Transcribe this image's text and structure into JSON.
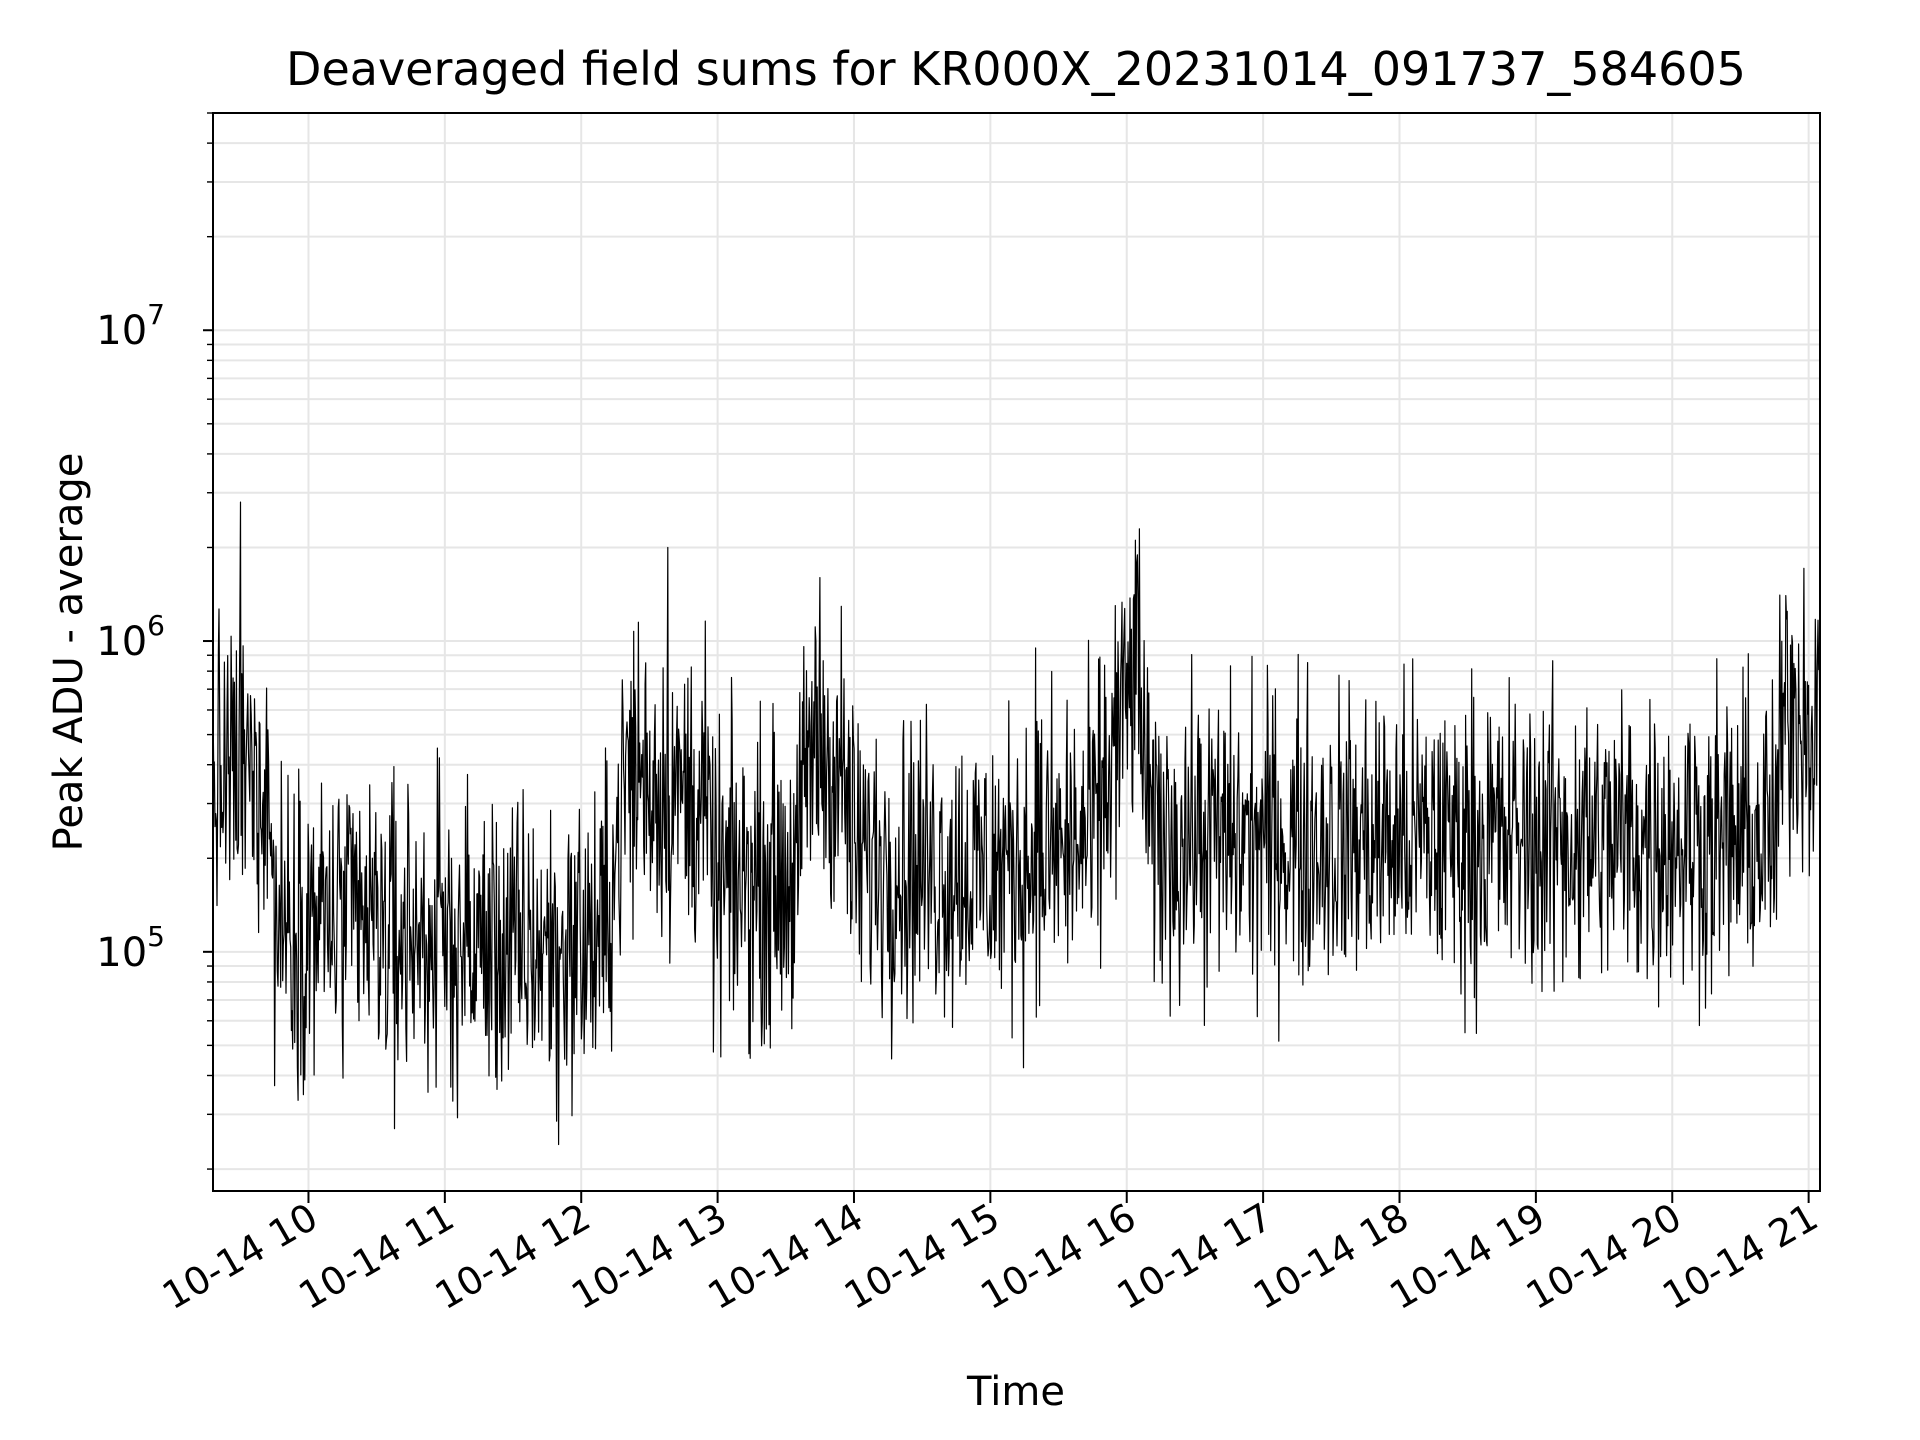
{
  "chart_data": {
    "type": "line",
    "title": "Deaveraged field sums for KR000X_20231014_091737_584605",
    "xlabel": "Time",
    "ylabel": "Peak ADU - average",
    "yscale": "log",
    "xlim": [
      "2023-10-14 09:18",
      "2023-10-14 21:05"
    ],
    "ylim": [
      17000,
      50000000
    ],
    "x_ticks": [
      "10-14 10",
      "10-14 11",
      "10-14 12",
      "10-14 13",
      "10-14 14",
      "10-14 15",
      "10-14 16",
      "10-14 17",
      "10-14 18",
      "10-14 19",
      "10-14 20",
      "10-14 21"
    ],
    "y_ticks": [
      {
        "base": "10",
        "exp": "5"
      },
      {
        "base": "10",
        "exp": "6"
      },
      {
        "base": "10",
        "exp": "7"
      }
    ],
    "grid": "on (major and minor)",
    "line_color": "#000000",
    "x_start": "2023-10-14 09:18",
    "x_end": "2023-10-14 21:05",
    "level_profile": [
      {
        "x": "2023-10-14 09:18",
        "y": 350000
      },
      {
        "x": "2023-10-14 09:42",
        "y": 380000
      },
      {
        "x": "2023-10-14 09:45",
        "y": 130000
      },
      {
        "x": "2023-10-14 10:30",
        "y": 120000
      },
      {
        "x": "2023-10-14 11:30",
        "y": 100000
      },
      {
        "x": "2023-10-14 12:10",
        "y": 110000
      },
      {
        "x": "2023-10-14 12:20",
        "y": 380000
      },
      {
        "x": "2023-10-14 12:55",
        "y": 300000
      },
      {
        "x": "2023-10-14 12:58",
        "y": 160000
      },
      {
        "x": "2023-10-14 13:35",
        "y": 180000
      },
      {
        "x": "2023-10-14 13:40",
        "y": 450000
      },
      {
        "x": "2023-10-14 13:55",
        "y": 380000
      },
      {
        "x": "2023-10-14 14:00",
        "y": 200000
      },
      {
        "x": "2023-10-14 15:00",
        "y": 180000
      },
      {
        "x": "2023-10-14 15:45",
        "y": 230000
      },
      {
        "x": "2023-10-14 16:05",
        "y": 900000
      },
      {
        "x": "2023-10-14 16:10",
        "y": 230000
      },
      {
        "x": "2023-10-14 20:45",
        "y": 230000
      },
      {
        "x": "2023-10-14 20:50",
        "y": 650000
      },
      {
        "x": "2023-10-14 21:05",
        "y": 550000
      }
    ],
    "spikes": [
      {
        "x": "2023-10-14 09:30",
        "y": 2800000
      },
      {
        "x": "2023-10-14 10:38",
        "y": 27000
      },
      {
        "x": "2023-10-14 11:50",
        "y": 24000
      },
      {
        "x": "2023-10-14 12:25",
        "y": 1150000
      },
      {
        "x": "2023-10-14 12:38",
        "y": 2000000
      },
      {
        "x": "2023-10-14 13:45",
        "y": 1600000
      },
      {
        "x": "2023-10-14 15:20",
        "y": 950000
      },
      {
        "x": "2023-10-14 15:55",
        "y": 1300000
      },
      {
        "x": "2023-10-14 16:05",
        "y": 1350000
      },
      {
        "x": "2023-10-14 20:50",
        "y": 1400000
      }
    ]
  }
}
